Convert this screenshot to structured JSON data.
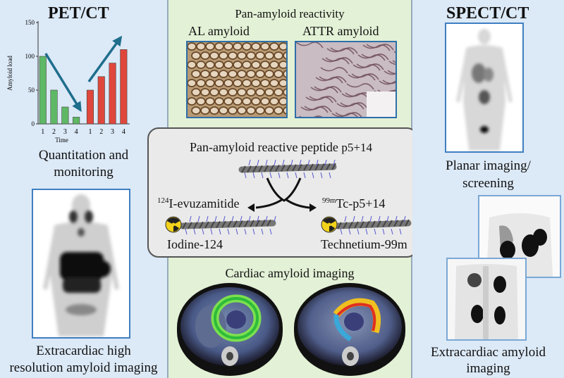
{
  "left": {
    "heading": "PET/CT",
    "caption1_line1": "Quantitation and",
    "caption1_line2": "monitoring",
    "caption2_line1": "Extracardiac high",
    "caption2_line2": "resolution amyloid imaging"
  },
  "middle": {
    "title": "Pan-amyloid reactivity",
    "label_al": "AL amyloid",
    "label_attr": "ATTR amyloid",
    "peptide_title": "Pan-amyloid reactive peptide",
    "peptide_name": "p5+14",
    "left_sup": "124",
    "left_name": "I-evuzamitide",
    "right_sup": "99m",
    "right_name": "Tc-p5+14",
    "left_isotope": "Iodine-124",
    "right_isotope": "Technetium-99m",
    "cardiac_title": "Cardiac amyloid imaging"
  },
  "right": {
    "heading": "SPECT/CT",
    "caption1_line1": "Planar imaging/",
    "caption1_line2": "screening",
    "caption2_line1": "Extracardiac amyloid",
    "caption2_line2": "imaging"
  },
  "chart_data": {
    "type": "bar",
    "ylabel": "Amyloid load",
    "xlabel": "Time",
    "ylim": [
      0,
      150
    ],
    "yticks": [
      0,
      50,
      100,
      150
    ],
    "categories": [
      "1",
      "2",
      "3",
      "4",
      "1",
      "2",
      "3",
      "4"
    ],
    "series": [
      {
        "values": [
          100,
          50,
          25,
          10,
          null,
          null,
          null,
          null
        ],
        "color": "#5fb865"
      },
      {
        "values": [
          null,
          null,
          null,
          null,
          50,
          70,
          90,
          110
        ],
        "color": "#e0473c"
      }
    ],
    "trend_color": "#1f6e8c"
  }
}
